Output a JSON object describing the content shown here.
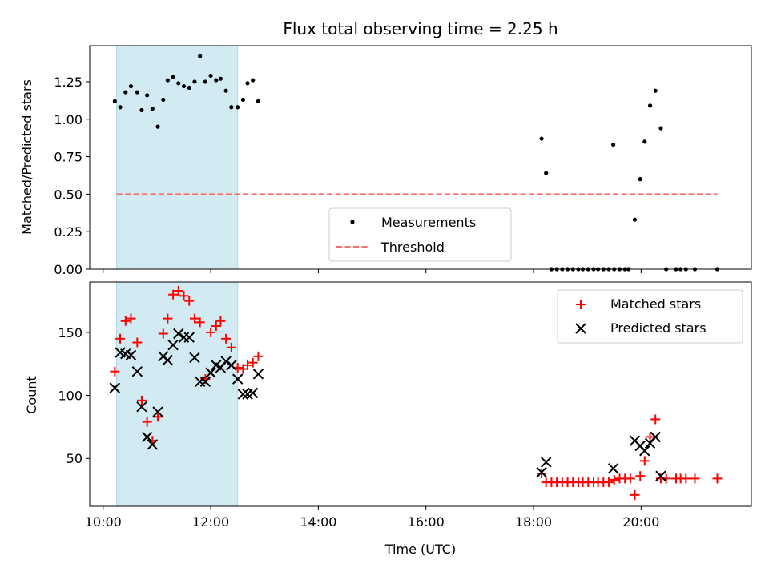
{
  "title": "Flux total observing time = 2.25 h",
  "colors": {
    "highlight": "#add8e6",
    "measurement": "#000000",
    "threshold": "#ff6b6b",
    "matched": "#ff0000",
    "predicted": "#000000"
  },
  "chart_data": [
    {
      "type": "scatter",
      "title": "Flux total observing time = 2.25 h",
      "xlabel": "",
      "ylabel": "Matched/Predicted stars",
      "x_unit": "hours UTC",
      "xlim": [
        9.75,
        22.05
      ],
      "ylim": [
        0.0,
        1.49
      ],
      "yticks": [
        "0.00",
        "0.25",
        "0.50",
        "0.75",
        "1.00",
        "1.25"
      ],
      "highlight_span": [
        "10:15",
        "12:30"
      ],
      "legend": {
        "position": "lower center",
        "entries": [
          "Measurements",
          "Threshold"
        ]
      },
      "threshold": {
        "name": "Threshold",
        "y": 0.5,
        "x_range": [
          "10:15",
          "21:25"
        ],
        "style": "dashed"
      },
      "series": [
        {
          "name": "Measurements",
          "marker": "dot",
          "points": [
            [
              "10:13",
              1.12
            ],
            [
              "10:19",
              1.08
            ],
            [
              "10:25",
              1.18
            ],
            [
              "10:31",
              1.22
            ],
            [
              "10:38",
              1.18
            ],
            [
              "10:43",
              1.06
            ],
            [
              "10:49",
              1.16
            ],
            [
              "10:55",
              1.07
            ],
            [
              "11:01",
              0.95
            ],
            [
              "11:07",
              1.13
            ],
            [
              "11:12",
              1.26
            ],
            [
              "11:18",
              1.28
            ],
            [
              "11:24",
              1.24
            ],
            [
              "11:30",
              1.22
            ],
            [
              "11:36",
              1.21
            ],
            [
              "11:42",
              1.25
            ],
            [
              "11:48",
              1.42
            ],
            [
              "11:54",
              1.25
            ],
            [
              "12:00",
              1.29
            ],
            [
              "12:06",
              1.26
            ],
            [
              "12:11",
              1.27
            ],
            [
              "12:17",
              1.19
            ],
            [
              "12:23",
              1.08
            ],
            [
              "12:30",
              1.08
            ],
            [
              "12:36",
              1.13
            ],
            [
              "12:41",
              1.24
            ],
            [
              "12:47",
              1.26
            ],
            [
              "12:53",
              1.12
            ],
            [
              "18:09",
              0.87
            ],
            [
              "18:14",
              0.64
            ],
            [
              "18:20",
              0.0
            ],
            [
              "18:26",
              0.0
            ],
            [
              "18:32",
              0.0
            ],
            [
              "18:38",
              0.0
            ],
            [
              "18:44",
              0.0
            ],
            [
              "18:50",
              0.0
            ],
            [
              "18:55",
              0.0
            ],
            [
              "19:01",
              0.0
            ],
            [
              "19:07",
              0.0
            ],
            [
              "19:12",
              0.0
            ],
            [
              "19:18",
              0.0
            ],
            [
              "19:24",
              0.0
            ],
            [
              "19:30",
              0.0
            ],
            [
              "19:36",
              0.0
            ],
            [
              "19:42",
              0.0
            ],
            [
              "19:46",
              0.0
            ],
            [
              "19:29",
              0.83
            ],
            [
              "19:53",
              0.33
            ],
            [
              "19:59",
              0.6
            ],
            [
              "20:04",
              0.85
            ],
            [
              "20:10",
              1.09
            ],
            [
              "20:16",
              1.19
            ],
            [
              "20:22",
              0.94
            ],
            [
              "20:28",
              0.0
            ],
            [
              "20:39",
              0.0
            ],
            [
              "20:44",
              0.0
            ],
            [
              "20:50",
              0.0
            ],
            [
              "21:00",
              0.0
            ],
            [
              "21:25",
              0.0
            ]
          ]
        }
      ]
    },
    {
      "type": "scatter",
      "title": "",
      "xlabel": "Time (UTC)",
      "ylabel": "Count",
      "x_unit": "hours UTC",
      "xlim": [
        9.75,
        22.05
      ],
      "ylim": [
        12,
        190
      ],
      "xticks": [
        "10:00",
        "12:00",
        "14:00",
        "16:00",
        "18:00",
        "20:00"
      ],
      "yticks": [
        "50",
        "100",
        "150"
      ],
      "highlight_span": [
        "10:15",
        "12:30"
      ],
      "legend": {
        "position": "upper right",
        "entries": [
          "Matched stars",
          "Predicted stars"
        ]
      },
      "series": [
        {
          "name": "Matched stars",
          "marker": "plus",
          "points": [
            [
              "10:13",
              119
            ],
            [
              "10:19",
              145
            ],
            [
              "10:25",
              159
            ],
            [
              "10:31",
              161
            ],
            [
              "10:38",
              142
            ],
            [
              "10:43",
              96
            ],
            [
              "10:49",
              79
            ],
            [
              "10:55",
              64
            ],
            [
              "11:01",
              83
            ],
            [
              "11:07",
              149
            ],
            [
              "11:12",
              161
            ],
            [
              "11:18",
              180
            ],
            [
              "11:24",
              183
            ],
            [
              "11:30",
              179
            ],
            [
              "11:36",
              175
            ],
            [
              "11:42",
              161
            ],
            [
              "11:48",
              158
            ],
            [
              "11:54",
              113
            ],
            [
              "12:00",
              150
            ],
            [
              "12:06",
              155
            ],
            [
              "12:11",
              159
            ],
            [
              "12:17",
              145
            ],
            [
              "12:23",
              138
            ],
            [
              "12:30",
              122
            ],
            [
              "12:36",
              121
            ],
            [
              "12:41",
              124
            ],
            [
              "12:47",
              126
            ],
            [
              "12:53",
              131
            ],
            [
              "18:09",
              38
            ],
            [
              "18:14",
              31
            ],
            [
              "18:20",
              31
            ],
            [
              "18:26",
              31
            ],
            [
              "18:32",
              31
            ],
            [
              "18:38",
              31
            ],
            [
              "18:44",
              31
            ],
            [
              "18:50",
              31
            ],
            [
              "18:55",
              31
            ],
            [
              "19:01",
              31
            ],
            [
              "19:07",
              31
            ],
            [
              "19:12",
              31
            ],
            [
              "19:18",
              31
            ],
            [
              "19:24",
              31
            ],
            [
              "19:30",
              33
            ],
            [
              "19:36",
              34
            ],
            [
              "19:42",
              34
            ],
            [
              "19:48",
              34
            ],
            [
              "19:53",
              21
            ],
            [
              "19:59",
              36
            ],
            [
              "20:04",
              48
            ],
            [
              "20:10",
              67
            ],
            [
              "20:16",
              81
            ],
            [
              "20:22",
              34
            ],
            [
              "20:28",
              34
            ],
            [
              "20:39",
              34
            ],
            [
              "20:44",
              34
            ],
            [
              "20:50",
              34
            ],
            [
              "21:00",
              34
            ],
            [
              "21:25",
              34
            ]
          ]
        },
        {
          "name": "Predicted stars",
          "marker": "x",
          "points": [
            [
              "10:13",
              106
            ],
            [
              "10:19",
              134
            ],
            [
              "10:25",
              133
            ],
            [
              "10:31",
              132
            ],
            [
              "10:38",
              119
            ],
            [
              "10:43",
              91
            ],
            [
              "10:49",
              67
            ],
            [
              "10:55",
              61
            ],
            [
              "11:01",
              87
            ],
            [
              "11:07",
              131
            ],
            [
              "11:12",
              128
            ],
            [
              "11:18",
              140
            ],
            [
              "11:24",
              149
            ],
            [
              "11:30",
              146
            ],
            [
              "11:36",
              146
            ],
            [
              "11:42",
              130
            ],
            [
              "11:48",
              111
            ],
            [
              "11:54",
              111
            ],
            [
              "12:00",
              118
            ],
            [
              "12:06",
              124
            ],
            [
              "12:11",
              122
            ],
            [
              "12:17",
              127
            ],
            [
              "12:23",
              124
            ],
            [
              "12:30",
              113
            ],
            [
              "12:36",
              101
            ],
            [
              "12:41",
              101
            ],
            [
              "12:47",
              102
            ],
            [
              "12:53",
              117
            ],
            [
              "18:09",
              39
            ],
            [
              "18:14",
              47
            ],
            [
              "19:29",
              42
            ],
            [
              "19:53",
              64
            ],
            [
              "19:59",
              60
            ],
            [
              "20:04",
              56
            ],
            [
              "20:10",
              62
            ],
            [
              "20:16",
              67
            ],
            [
              "20:22",
              36
            ]
          ]
        }
      ]
    }
  ]
}
